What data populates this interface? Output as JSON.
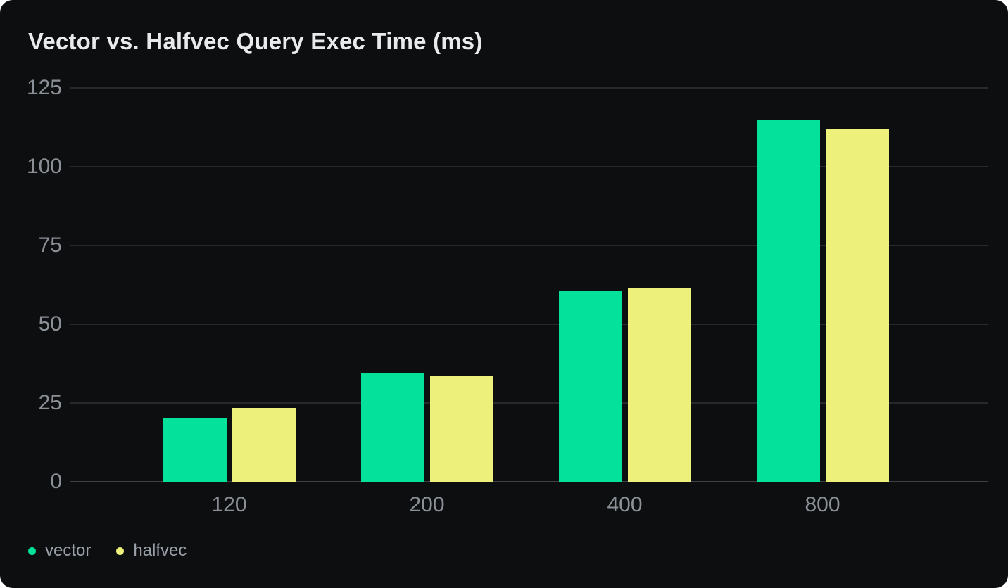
{
  "chart_data": {
    "type": "bar",
    "title": "Vector vs. Halfvec Query Exec Time (ms)",
    "categories": [
      "120",
      "200",
      "400",
      "800"
    ],
    "series": [
      {
        "name": "vector",
        "color": "#03e19a",
        "values": [
          20,
          34.5,
          60.5,
          115
        ]
      },
      {
        "name": "halfvec",
        "color": "#edf07b",
        "values": [
          23.5,
          33.5,
          61.5,
          112
        ]
      }
    ],
    "xlabel": "",
    "ylabel": "",
    "ylim": [
      0,
      125
    ],
    "yticks": [
      0,
      25,
      50,
      75,
      100,
      125
    ],
    "grid": "horizontal",
    "legend_position": "bottom-left"
  },
  "colors": {
    "page_bg": "#ffffff",
    "card_bg": "#0d0e10",
    "grid_line": "#27292c",
    "axis_line": "#3c3f43",
    "tick_text": "#8b9097",
    "title_text": "#e9eaec",
    "legend_text": "#9aa0a8"
  }
}
